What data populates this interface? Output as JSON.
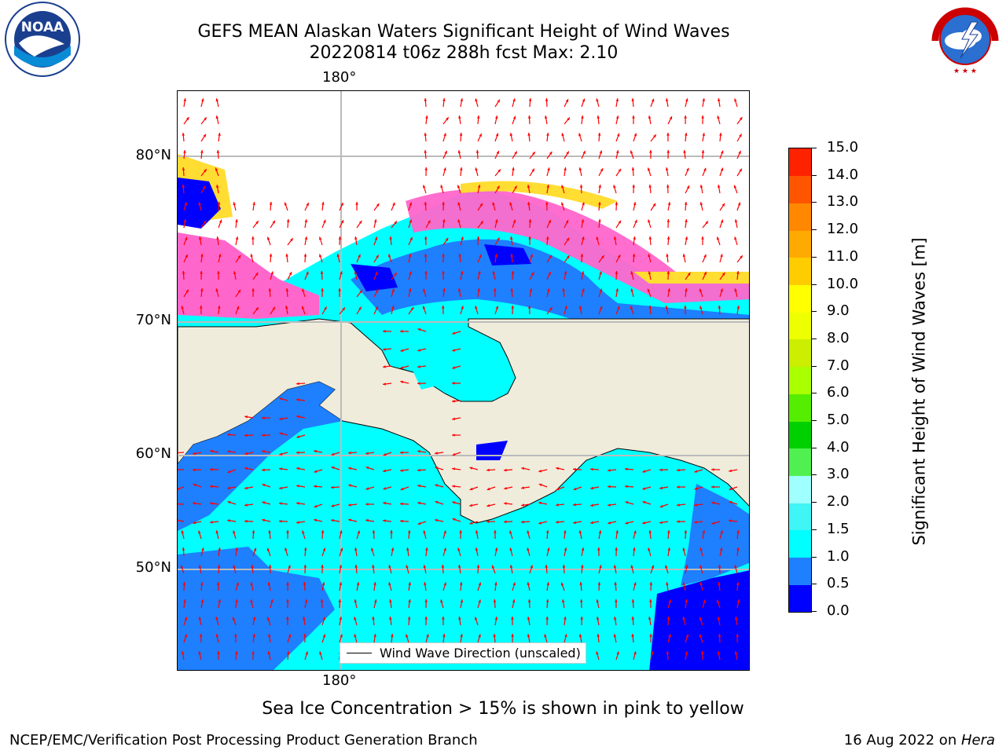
{
  "title_line1": "GEFS MEAN Alaskan Waters Significant Height of Wind Waves",
  "title_line2": "20220814 t06z 288h fcst   Max: 2.10",
  "logos": {
    "left": "noaa-logo",
    "right": "nws-logo"
  },
  "map": {
    "lon_label_top": "180°",
    "lon_label_bottom": "180°",
    "lat_labels": [
      "80°N",
      "70°N",
      "60°N",
      "50°N"
    ],
    "legend_text": "Wind Wave Direction (unscaled)",
    "colors": {
      "land": "#efecdc",
      "arrow": "#ff0000",
      "ice_pink": "#ff66cc",
      "ice_yellow": "#ffdd33"
    }
  },
  "colorbar": {
    "title": "Significant Height of Wind Waves [m]",
    "ticks": [
      "0.0",
      "0.5",
      "1.0",
      "1.5",
      "2.0",
      "3.0",
      "4.0",
      "5.0",
      "6.0",
      "7.0",
      "8.0",
      "9.0",
      "10.0",
      "11.0",
      "12.0",
      "13.0",
      "14.0",
      "15.0"
    ],
    "colors": [
      "#0000ff",
      "#1e7fff",
      "#00ffff",
      "#3ff5f5",
      "#a0ffff",
      "#50f050",
      "#00d000",
      "#55ee00",
      "#aaff00",
      "#ccee00",
      "#eeff00",
      "#ffff00",
      "#ffcc00",
      "#ffaa00",
      "#ff8800",
      "#ff5500",
      "#ff2200"
    ]
  },
  "note": "Sea Ice Concentration > 15% is shown in pink to yellow",
  "footer_left": "NCEP/EMC/Verification Post Processing Product Generation Branch",
  "footer_right_date": "16 Aug 2022 on ",
  "footer_right_machine": "Hera"
}
